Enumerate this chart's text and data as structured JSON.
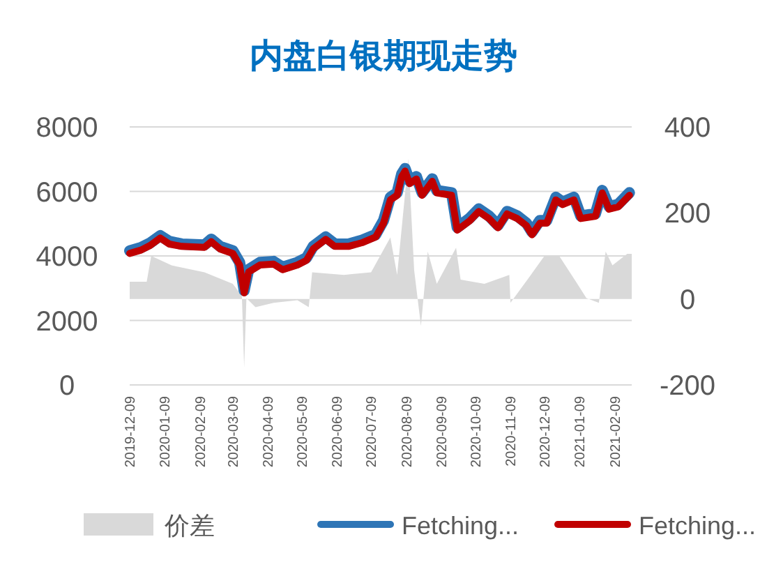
{
  "chart_data": {
    "type": "line",
    "title": "内盘白银期现走势",
    "x": [
      "2019-12-09",
      "2019-12-19",
      "2019-12-27",
      "2020-01-05",
      "2020-01-13",
      "2020-01-24",
      "2020-02-13",
      "2020-02-19",
      "2020-02-27",
      "2020-03-09",
      "2020-03-15",
      "2020-03-19",
      "2020-03-23",
      "2020-04-02",
      "2020-04-14",
      "2020-04-22",
      "2020-05-05",
      "2020-05-13",
      "2020-05-19",
      "2020-05-30",
      "2020-06-07",
      "2020-06-19",
      "2020-07-01",
      "2020-07-13",
      "2020-07-20",
      "2020-07-26",
      "2020-08-01",
      "2020-08-05",
      "2020-08-08",
      "2020-08-12",
      "2020-08-18",
      "2020-08-23",
      "2020-09-01",
      "2020-09-05",
      "2020-09-18",
      "2020-09-23",
      "2020-10-04",
      "2020-10-12",
      "2020-10-21",
      "2020-10-29",
      "2020-11-06",
      "2020-11-15",
      "2020-11-23",
      "2020-11-28",
      "2020-12-05",
      "2020-12-11",
      "2020-12-19",
      "2020-12-25",
      "2021-01-04",
      "2021-01-10",
      "2021-01-23",
      "2021-01-29",
      "2021-02-04",
      "2021-02-12",
      "2021-02-22"
    ],
    "series": [
      {
        "name": "价差",
        "type": "area",
        "axis": "y2",
        "color": "#d9d9d9",
        "x": [
          "2019-12-09",
          "2019-12-24",
          "2019-12-28",
          "2020-01-15",
          "2020-02-13",
          "2020-03-09",
          "2020-03-17",
          "2020-03-19",
          "2020-03-21",
          "2020-03-29",
          "2020-04-14",
          "2020-05-05",
          "2020-05-15",
          "2020-05-18",
          "2020-06-15",
          "2020-07-09",
          "2020-07-26",
          "2020-08-01",
          "2020-08-11",
          "2020-08-16",
          "2020-08-22",
          "2020-08-28",
          "2020-09-05",
          "2020-09-22",
          "2020-09-26",
          "2020-10-17",
          "2020-11-08",
          "2020-11-09",
          "2020-11-27",
          "2020-12-09",
          "2020-12-22",
          "2021-01-07",
          "2021-01-15",
          "2021-01-26",
          "2021-02-01",
          "2021-02-07",
          "2021-02-20",
          "2021-02-24"
        ],
        "values": [
          40,
          40,
          100,
          78,
          62,
          35,
          7,
          -160,
          2,
          -19,
          -9,
          -3,
          -19,
          62,
          56,
          62,
          143,
          56,
          326,
          67,
          -63,
          110,
          35,
          119,
          45,
          35,
          56,
          -9,
          56,
          100,
          100,
          35,
          2,
          -9,
          110,
          78,
          105,
          105
        ]
      },
      {
        "name": "Fetching...",
        "color": "#2e75b6",
        "values": [
          4160,
          4260,
          4400,
          4630,
          4450,
          4370,
          4340,
          4520,
          4290,
          4160,
          3800,
          2930,
          3580,
          3800,
          3830,
          3650,
          3800,
          3940,
          4300,
          4590,
          4370,
          4370,
          4490,
          4660,
          5100,
          5820,
          5960,
          6540,
          6710,
          6320,
          6460,
          5960,
          6390,
          6030,
          5960,
          4880,
          5170,
          5460,
          5240,
          4950,
          5380,
          5240,
          5020,
          4740,
          5100,
          5100,
          5820,
          5670,
          5820,
          5240,
          5310,
          6030,
          5530,
          5600,
          5960
        ]
      },
      {
        "name": "Fetching...",
        "color": "#c00000",
        "values": [
          4078,
          4181,
          4324,
          4555,
          4367,
          4295,
          4266,
          4440,
          4209,
          4078,
          3719,
          2854,
          3502,
          3719,
          3748,
          3575,
          3719,
          3863,
          4223,
          4512,
          4295,
          4295,
          4410,
          4584,
          5016,
          5737,
          5881,
          6457,
          6630,
          6241,
          6385,
          5881,
          6313,
          5953,
          5881,
          4800,
          5088,
          5376,
          5160,
          4872,
          5304,
          5160,
          4944,
          4656,
          5016,
          5016,
          5737,
          5592,
          5737,
          5160,
          5232,
          5953,
          5448,
          5520,
          5881
        ]
      }
    ],
    "xlim": [
      "2019-12-09",
      "2021-02-24"
    ],
    "xticks": [
      "2019-12-09",
      "2020-01-09",
      "2020-02-09",
      "2020-03-09",
      "2020-04-09",
      "2020-05-09",
      "2020-06-09",
      "2020-07-09",
      "2020-08-09",
      "2020-09-09",
      "2020-10-09",
      "2020-11-09",
      "2020-12-09",
      "2021-01-09",
      "2021-02-09"
    ],
    "ylim": [
      0,
      8000
    ],
    "yticks": [
      0,
      2000,
      4000,
      6000,
      8000
    ],
    "y2lim": [
      -200,
      400
    ],
    "y2ticks": [
      -200,
      0,
      200,
      400
    ],
    "grid": "y",
    "legend": "bottom",
    "line_style": "solid",
    "marker": "none"
  }
}
